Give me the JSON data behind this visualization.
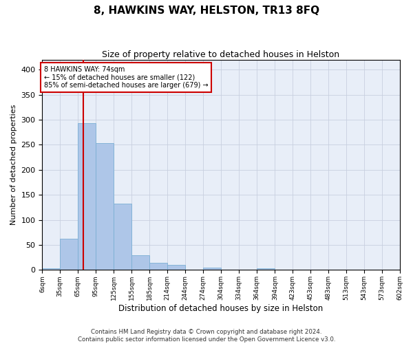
{
  "title": "8, HAWKINS WAY, HELSTON, TR13 8FQ",
  "subtitle": "Size of property relative to detached houses in Helston",
  "xlabel": "Distribution of detached houses by size in Helston",
  "ylabel": "Number of detached properties",
  "bin_labels": [
    "6sqm",
    "35sqm",
    "65sqm",
    "95sqm",
    "125sqm",
    "155sqm",
    "185sqm",
    "214sqm",
    "244sqm",
    "274sqm",
    "304sqm",
    "334sqm",
    "364sqm",
    "394sqm",
    "423sqm",
    "453sqm",
    "483sqm",
    "513sqm",
    "543sqm",
    "573sqm",
    "602sqm"
  ],
  "bin_edges": [
    6,
    35,
    65,
    95,
    125,
    155,
    185,
    214,
    244,
    274,
    304,
    334,
    364,
    394,
    423,
    453,
    483,
    513,
    543,
    573,
    602
  ],
  "bar_heights": [
    3,
    62,
    293,
    254,
    133,
    29,
    15,
    10,
    0,
    5,
    0,
    0,
    3,
    0,
    0,
    0,
    0,
    0,
    0,
    0
  ],
  "bar_color": "#aec6e8",
  "bar_edgecolor": "#7aafd4",
  "grid_color": "#c8cfe0",
  "bg_color": "#e8eef8",
  "vline_x": 74,
  "vline_color": "#cc0000",
  "ylim": [
    0,
    420
  ],
  "yticks": [
    0,
    50,
    100,
    150,
    200,
    250,
    300,
    350,
    400
  ],
  "annotation_text": "8 HAWKINS WAY: 74sqm\n← 15% of detached houses are smaller (122)\n85% of semi-detached houses are larger (679) →",
  "annotation_box_color": "#ffffff",
  "annotation_box_edgecolor": "#cc0000",
  "footer_line1": "Contains HM Land Registry data © Crown copyright and database right 2024.",
  "footer_line2": "Contains public sector information licensed under the Open Government Licence v3.0."
}
